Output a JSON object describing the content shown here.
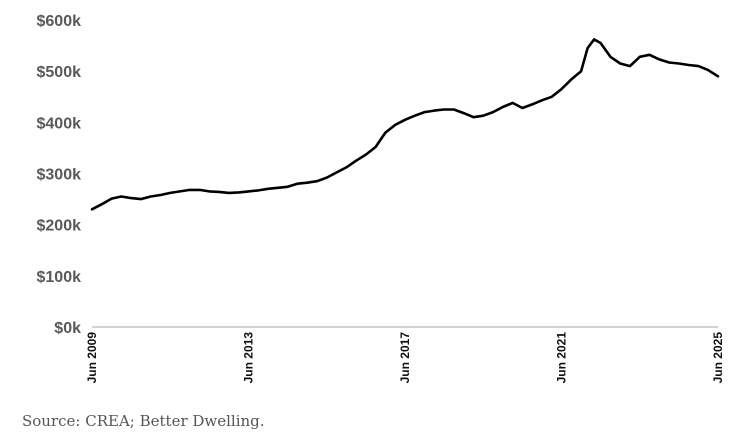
{
  "chart_data": {
    "type": "line",
    "title": "",
    "xlabel": "",
    "ylabel": "",
    "ylim": [
      0,
      600000
    ],
    "yticks": [
      {
        "value": 0,
        "label": "$0k"
      },
      {
        "value": 100000,
        "label": "$100k"
      },
      {
        "value": 200000,
        "label": "$200k"
      },
      {
        "value": 300000,
        "label": "$300k"
      },
      {
        "value": 400000,
        "label": "$400k"
      },
      {
        "value": 500000,
        "label": "$500k"
      },
      {
        "value": 600000,
        "label": "$600k"
      }
    ],
    "xlim": [
      "2009-06",
      "2025-06"
    ],
    "xticks": [
      {
        "value": "2009-06",
        "label": "Jun 2009"
      },
      {
        "value": "2013-06",
        "label": "Jun 2013"
      },
      {
        "value": "2017-06",
        "label": "Jun 2017"
      },
      {
        "value": "2021-06",
        "label": "Jun 2021"
      },
      {
        "value": "2025-06",
        "label": "Jun 2025"
      }
    ],
    "grid": false,
    "line_color": "#000000",
    "axis_color": "#a6a6a6",
    "series": [
      {
        "x": [
          "2009-06",
          "2009-09",
          "2009-12",
          "2010-03",
          "2010-06",
          "2010-09",
          "2010-12",
          "2011-03",
          "2011-06",
          "2011-09",
          "2011-12",
          "2012-03",
          "2012-06",
          "2012-09",
          "2012-12",
          "2013-03",
          "2013-06",
          "2013-09",
          "2013-12",
          "2014-03",
          "2014-06",
          "2014-09",
          "2014-12",
          "2015-03",
          "2015-06",
          "2015-09",
          "2015-12",
          "2016-03",
          "2016-06",
          "2016-09",
          "2016-12",
          "2017-03",
          "2017-06",
          "2017-09",
          "2017-12",
          "2018-03",
          "2018-06",
          "2018-09",
          "2018-12",
          "2019-03",
          "2019-06",
          "2019-09",
          "2019-12",
          "2020-03",
          "2020-06",
          "2020-09",
          "2020-12",
          "2021-03",
          "2021-06",
          "2021-09",
          "2021-12",
          "2022-02",
          "2022-04",
          "2022-06",
          "2022-09",
          "2022-12",
          "2023-03",
          "2023-06",
          "2023-09",
          "2023-12",
          "2024-03",
          "2024-06",
          "2024-09",
          "2024-12",
          "2025-03",
          "2025-06"
        ],
        "values": [
          230000,
          240000,
          251000,
          255000,
          252000,
          250000,
          255000,
          258000,
          262000,
          265000,
          268000,
          268000,
          265000,
          264000,
          262000,
          263000,
          265000,
          267000,
          270000,
          272000,
          274000,
          280000,
          282000,
          285000,
          292000,
          302000,
          312000,
          325000,
          337000,
          352000,
          380000,
          395000,
          405000,
          413000,
          420000,
          423000,
          425000,
          425000,
          418000,
          410000,
          413000,
          420000,
          430000,
          438000,
          428000,
          435000,
          443000,
          450000,
          465000,
          484000,
          500000,
          545000,
          562000,
          555000,
          528000,
          515000,
          510000,
          528000,
          532000,
          523000,
          517000,
          515000,
          512000,
          510000,
          502000,
          490000
        ]
      }
    ]
  },
  "source": "Source: CREA; Better Dwelling."
}
